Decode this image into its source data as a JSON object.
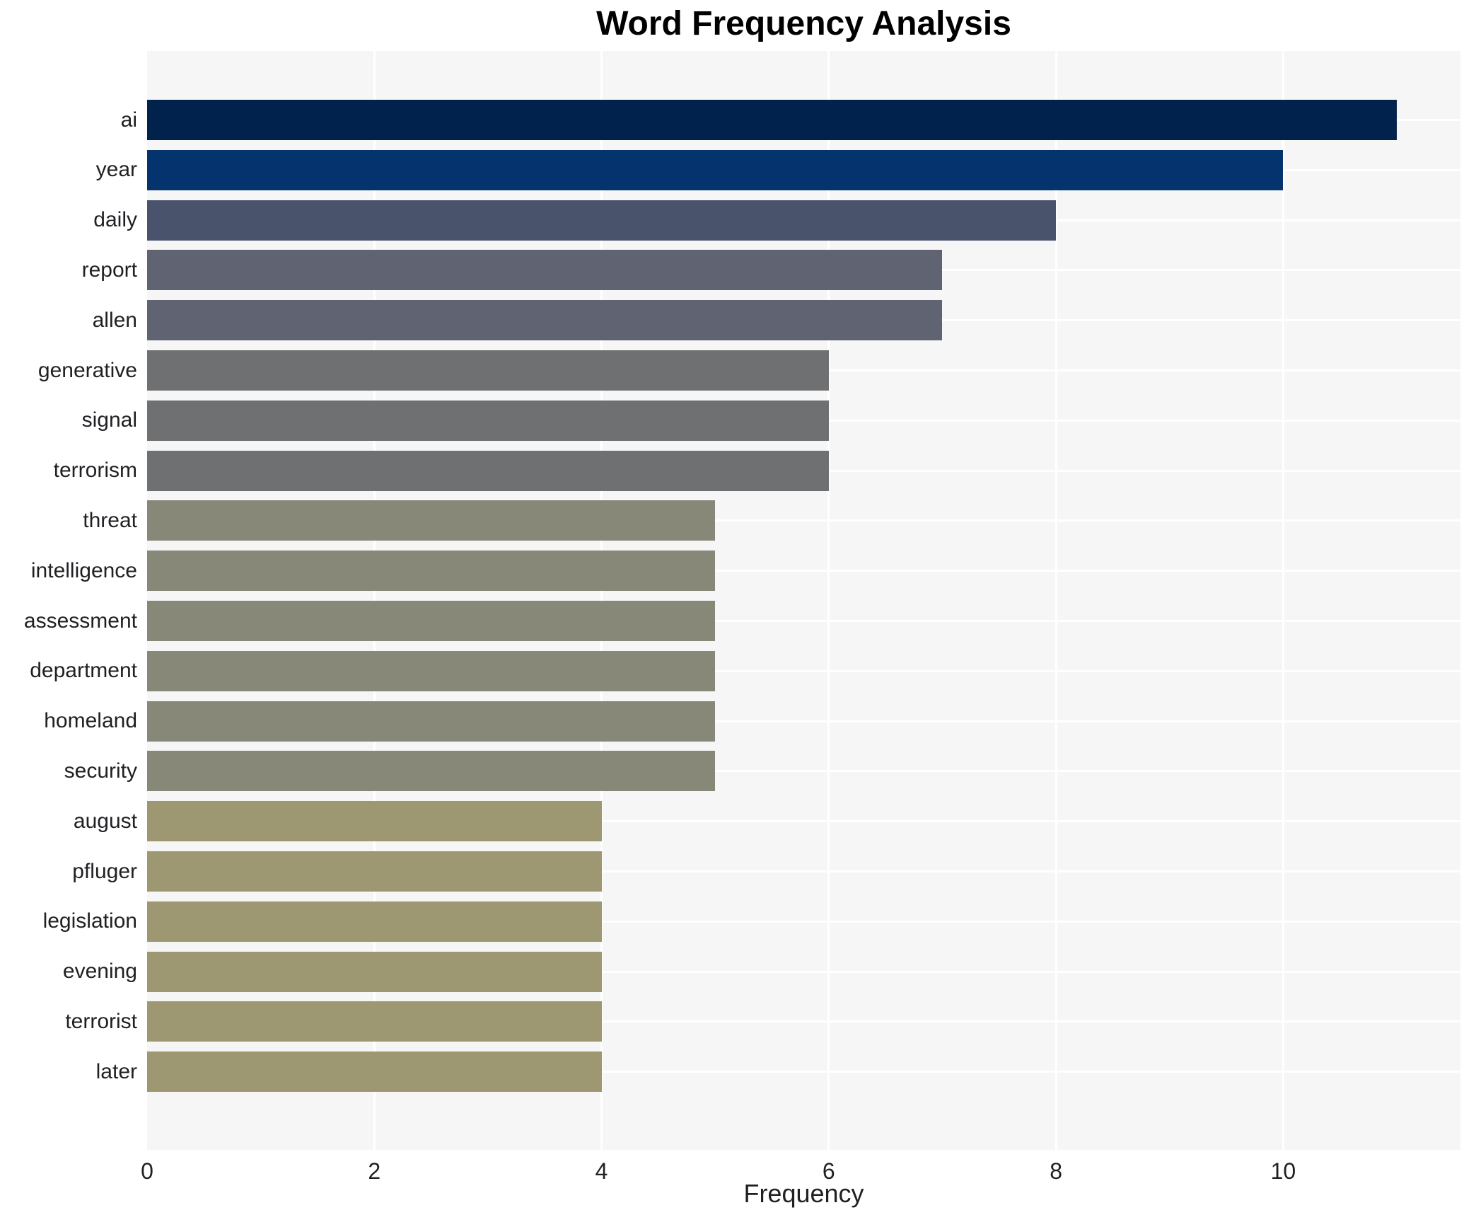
{
  "title": "Word Frequency Analysis",
  "xlabel": "Frequency",
  "chart_data": {
    "type": "bar",
    "orientation": "horizontal",
    "title": "Word Frequency Analysis",
    "xlabel": "Frequency",
    "ylabel": "",
    "categories": [
      "ai",
      "year",
      "daily",
      "report",
      "allen",
      "generative",
      "signal",
      "terrorism",
      "threat",
      "intelligence",
      "assessment",
      "department",
      "homeland",
      "security",
      "august",
      "pfluger",
      "legislation",
      "evening",
      "terrorist",
      "later"
    ],
    "values": [
      11,
      10,
      8,
      7,
      7,
      6,
      6,
      6,
      5,
      5,
      5,
      5,
      5,
      5,
      4,
      4,
      4,
      4,
      4,
      4
    ],
    "bar_colors": [
      "#01224d",
      "#05336d",
      "#4a536c",
      "#606371",
      "#606371",
      "#6f7072",
      "#6f7072",
      "#6f7072",
      "#878877",
      "#878877",
      "#878877",
      "#878877",
      "#878877",
      "#878877",
      "#9e9872",
      "#9e9872",
      "#9e9872",
      "#9e9872",
      "#9e9872",
      "#9e9872"
    ],
    "xlim": [
      0,
      11.56
    ],
    "xticks": [
      0,
      2,
      4,
      6,
      8,
      10
    ],
    "grid": "white vertical lines at x ticks and white horizontal lines at category centers",
    "legend": "none",
    "plot_background": "#f5f6f5",
    "figure_background": "#ffffff",
    "grid_color": "#ffffff",
    "text_color": "#1f2023"
  }
}
